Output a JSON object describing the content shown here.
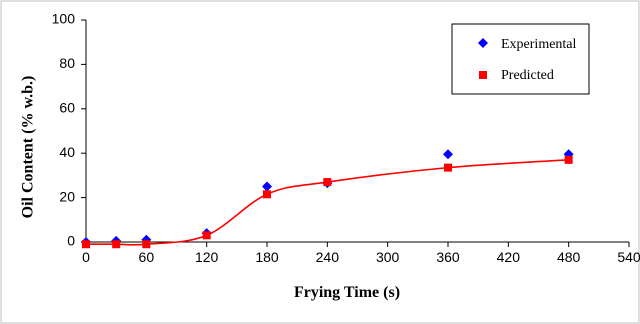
{
  "chart_data": {
    "type": "scatter",
    "xlabel": "Frying Time (s)",
    "ylabel": "Oil Content (% w.b.)",
    "xlim": [
      0,
      540
    ],
    "ylim": [
      0,
      100
    ],
    "xticks": [
      0,
      60,
      120,
      180,
      240,
      300,
      360,
      420,
      480,
      540
    ],
    "yticks": [
      0,
      20,
      40,
      60,
      80,
      100
    ],
    "grid": false,
    "legend_position": "top-right",
    "series": [
      {
        "name": "Experimental",
        "marker": "diamond",
        "color": "#0000ff",
        "x": [
          0,
          30,
          60,
          120,
          180,
          240,
          360,
          480
        ],
        "y": [
          0,
          0.5,
          1,
          4,
          25,
          26.5,
          39.5,
          39.5
        ]
      },
      {
        "name": "Predicted",
        "marker": "square",
        "color": "#ff0000",
        "x": [
          0,
          30,
          60,
          120,
          180,
          240,
          360,
          480
        ],
        "y": [
          -1,
          -1,
          -1,
          3,
          21.5,
          27,
          33.5,
          37
        ],
        "trendline": true
      }
    ]
  }
}
